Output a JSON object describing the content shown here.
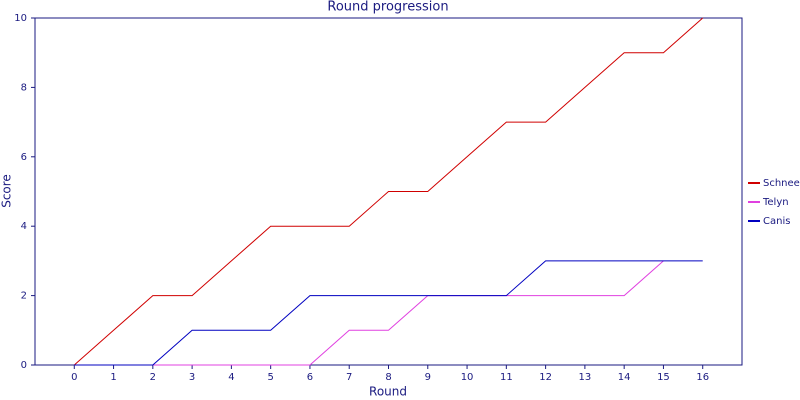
{
  "chart_data": {
    "type": "line",
    "title": "Round progression",
    "x_label": "Round",
    "y_label": "Score",
    "x": [
      0,
      1,
      2,
      3,
      4,
      5,
      6,
      7,
      8,
      9,
      10,
      11,
      12,
      13,
      14,
      15,
      16
    ],
    "series": [
      {
        "name": "Schnee",
        "color": "#d00000",
        "values": [
          0,
          1,
          2,
          2,
          3,
          4,
          4,
          4,
          5,
          5,
          6,
          7,
          7,
          8,
          9,
          9,
          10
        ]
      },
      {
        "name": "Telyn",
        "color": "#e040e0",
        "values": [
          0,
          0,
          0,
          0,
          0,
          0,
          0,
          1,
          1,
          2,
          2,
          2,
          2,
          2,
          2,
          3,
          null
        ]
      },
      {
        "name": "Canis",
        "color": "#0000c0",
        "values": [
          0,
          0,
          0,
          1,
          1,
          1,
          2,
          2,
          2,
          2,
          2,
          2,
          3,
          3,
          3,
          3,
          3
        ]
      }
    ],
    "xlim": [
      -1,
      17
    ],
    "xticks": [
      0,
      1,
      2,
      3,
      4,
      5,
      6,
      7,
      8,
      9,
      10,
      11,
      12,
      13,
      14,
      15,
      16
    ],
    "ylim": [
      0,
      10
    ],
    "yticks": [
      0,
      2,
      4,
      6,
      8,
      10
    ],
    "grid": false,
    "legend": "right"
  }
}
